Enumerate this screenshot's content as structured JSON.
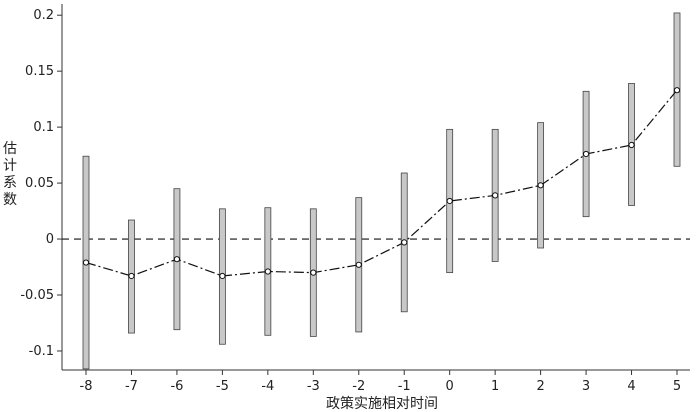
{
  "chart_data": {
    "type": "line",
    "title": "",
    "xlabel": "政策实施相对时间",
    "ylabel": "估计系数",
    "x": [
      -8,
      -7,
      -6,
      -5,
      -4,
      -3,
      -2,
      -1,
      0,
      1,
      2,
      3,
      4,
      5
    ],
    "x_ticks": [
      "-8",
      "-7",
      "-6",
      "-5",
      "-4",
      "-3",
      "-2",
      "-1",
      "0",
      "1",
      "2",
      "3",
      "4",
      "5"
    ],
    "y_ticks": [
      {
        "value": -0.1,
        "label": "-0.1"
      },
      {
        "value": -0.05,
        "label": "-0.05"
      },
      {
        "value": 0,
        "label": "0"
      },
      {
        "value": 0.05,
        "label": "0.05"
      },
      {
        "value": 0.1,
        "label": "0.1"
      },
      {
        "value": 0.15,
        "label": "0.15"
      },
      {
        "value": 0.2,
        "label": "0.2"
      }
    ],
    "ylim": [
      -0.117,
      0.21
    ],
    "series": [
      {
        "estimate": [
          -0.021,
          -0.033,
          -0.018,
          -0.033,
          -0.029,
          -0.03,
          -0.023,
          -0.003,
          0.034,
          0.039,
          0.048,
          0.076,
          0.084,
          0.133
        ],
        "ci_lower": [
          -0.116,
          -0.084,
          -0.081,
          -0.094,
          -0.086,
          -0.087,
          -0.083,
          -0.065,
          -0.03,
          -0.02,
          -0.008,
          0.02,
          0.03,
          0.065
        ],
        "ci_upper": [
          0.074,
          0.017,
          0.045,
          0.027,
          0.028,
          0.027,
          0.037,
          0.059,
          0.098,
          0.098,
          0.104,
          0.132,
          0.139,
          0.202
        ]
      }
    ],
    "reference_line": {
      "y": 0,
      "style": "dashed"
    },
    "grid": false,
    "colors": {
      "ci_bar": "#c8c8c8",
      "line": "#111111",
      "axis": "#333333"
    }
  }
}
